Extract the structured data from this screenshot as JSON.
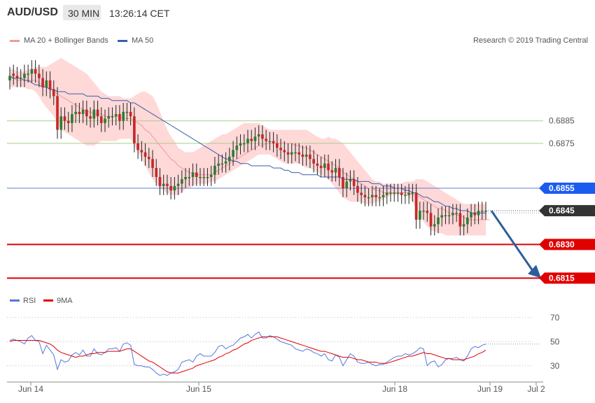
{
  "header": {
    "pair": "AUD/USD",
    "timeframe": "30 MIN",
    "time": "13:26:14 CET"
  },
  "legend": {
    "bollinger_label": "MA 20 + Bollinger Bands",
    "ma50_label": "MA 50",
    "credit": "Research © 2019 Trading Central"
  },
  "rsi_legend": {
    "rsi_label": "RSI",
    "ma_label": "9MA"
  },
  "colors": {
    "bollinger_band": "#ffd8d8",
    "ma20": "#f29a9a",
    "ma50": "#3a5ea8",
    "bull_candle": "#2e7d32",
    "bear_candle": "#c62828",
    "support_resistance_green": "#a6cf86",
    "blue_level": "#5b7fd6",
    "red_level": "#e00000",
    "dark_badge": "#333333",
    "forecast_arrow": "#2d5e9c",
    "rsi_line": "#5577dd",
    "rsi_ma": "#e00000"
  },
  "chart_data": [
    {
      "type": "candlestick",
      "title": "AUD/USD 30 MIN",
      "x_ticks": [
        "Jun 14",
        "Jun 15",
        "Jun 18",
        "Jun 19",
        "Jul 2"
      ],
      "ylim": [
        0.6808,
        0.6912
      ],
      "current_price": 0.6845,
      "levels": [
        {
          "value": 0.6885,
          "label": "0.6885",
          "style": "green-line"
        },
        {
          "value": 0.6875,
          "label": "0.6875",
          "style": "green-line"
        },
        {
          "value": 0.6855,
          "label": "0.6855",
          "style": "blue-badge"
        },
        {
          "value": 0.6845,
          "label": "0.6845",
          "style": "dark-badge"
        },
        {
          "value": 0.683,
          "label": "0.6830",
          "style": "red-badge"
        },
        {
          "value": 0.6815,
          "label": "0.6815",
          "style": "red-badge"
        }
      ],
      "close_series": [
        0.6905,
        0.6905,
        0.6904,
        0.6904,
        0.6906,
        0.6906,
        0.6908,
        0.6906,
        0.6904,
        0.69,
        0.6903,
        0.6899,
        0.6896,
        0.6881,
        0.6887,
        0.6885,
        0.6884,
        0.6888,
        0.6889,
        0.6888,
        0.689,
        0.6887,
        0.6886,
        0.689,
        0.6887,
        0.6884,
        0.6886,
        0.6887,
        0.6887,
        0.6888,
        0.6885,
        0.6889,
        0.6889,
        0.6887,
        0.6875,
        0.6872,
        0.6871,
        0.6869,
        0.6868,
        0.6864,
        0.686,
        0.6856,
        0.6857,
        0.6856,
        0.6854,
        0.6856,
        0.6857,
        0.6859,
        0.686,
        0.686,
        0.6862,
        0.686,
        0.686,
        0.686,
        0.686,
        0.6861,
        0.6865,
        0.6866,
        0.6866,
        0.6867,
        0.6869,
        0.6872,
        0.6874,
        0.6875,
        0.6875,
        0.6877,
        0.6876,
        0.6878,
        0.6879,
        0.6877,
        0.6876,
        0.6876,
        0.6875,
        0.6873,
        0.6872,
        0.6871,
        0.687,
        0.6871,
        0.6871,
        0.687,
        0.6869,
        0.687,
        0.6868,
        0.6866,
        0.6865,
        0.6864,
        0.6866,
        0.6863,
        0.6862,
        0.6864,
        0.686,
        0.6855,
        0.6858,
        0.6859,
        0.6856,
        0.6853,
        0.6852,
        0.6851,
        0.6851,
        0.6852,
        0.6851,
        0.6851,
        0.6852,
        0.6853,
        0.6853,
        0.6853,
        0.6853,
        0.6852,
        0.6852,
        0.6853,
        0.6853,
        0.6841,
        0.6845,
        0.6845,
        0.6844,
        0.6838,
        0.6839,
        0.6842,
        0.6843,
        0.6843,
        0.6843,
        0.6844,
        0.6844,
        0.6838,
        0.6839,
        0.6842,
        0.6844,
        0.6843,
        0.6845,
        0.6845,
        0.6845
      ],
      "open_series": [
        0.6903,
        0.6906,
        0.6905,
        0.6904,
        0.6904,
        0.6906,
        0.6906,
        0.6908,
        0.6906,
        0.6904,
        0.69,
        0.6903,
        0.6899,
        0.6896,
        0.6881,
        0.6887,
        0.6885,
        0.6884,
        0.6888,
        0.6889,
        0.6888,
        0.689,
        0.6887,
        0.6886,
        0.689,
        0.6887,
        0.6884,
        0.6886,
        0.6887,
        0.6887,
        0.6888,
        0.6885,
        0.6889,
        0.6889,
        0.6887,
        0.6875,
        0.6872,
        0.6871,
        0.6869,
        0.6868,
        0.6864,
        0.686,
        0.6856,
        0.6857,
        0.6856,
        0.6854,
        0.6856,
        0.6857,
        0.6859,
        0.686,
        0.686,
        0.6862,
        0.686,
        0.686,
        0.686,
        0.686,
        0.6861,
        0.6865,
        0.6866,
        0.6866,
        0.6867,
        0.6869,
        0.6872,
        0.6874,
        0.6875,
        0.6875,
        0.6877,
        0.6876,
        0.6878,
        0.6879,
        0.6877,
        0.6876,
        0.6876,
        0.6875,
        0.6873,
        0.6872,
        0.6871,
        0.687,
        0.6871,
        0.6871,
        0.687,
        0.6869,
        0.687,
        0.6868,
        0.6866,
        0.6865,
        0.6864,
        0.6866,
        0.6863,
        0.6862,
        0.6864,
        0.686,
        0.6855,
        0.6858,
        0.6859,
        0.6856,
        0.6853,
        0.6852,
        0.6851,
        0.6851,
        0.6852,
        0.6851,
        0.6851,
        0.6852,
        0.6853,
        0.6853,
        0.6853,
        0.6853,
        0.6852,
        0.6852,
        0.6853,
        0.6853,
        0.6841,
        0.6845,
        0.6845,
        0.6844,
        0.6838,
        0.6839,
        0.6842,
        0.6843,
        0.6843,
        0.6843,
        0.6844,
        0.6844,
        0.6838,
        0.6839,
        0.6842,
        0.6844,
        0.6843,
        0.6845,
        0.6845
      ],
      "ma20_series": [
        0.6904,
        0.6904,
        0.6903,
        0.6903,
        0.6903,
        0.6903,
        0.6903,
        0.6903,
        0.6902,
        0.6901,
        0.69,
        0.6899,
        0.6898,
        0.6897,
        0.6896,
        0.6895,
        0.6894,
        0.6893,
        0.6892,
        0.6891,
        0.689,
        0.6889,
        0.6889,
        0.6888,
        0.6888,
        0.6888,
        0.6887,
        0.6887,
        0.6887,
        0.6887,
        0.6887,
        0.6886,
        0.6886,
        0.6886,
        0.6885,
        0.6884,
        0.6883,
        0.6881,
        0.688,
        0.6878,
        0.6876,
        0.6874,
        0.6872,
        0.687,
        0.6868,
        0.6867,
        0.6865,
        0.6864,
        0.6863,
        0.6862,
        0.6862,
        0.6861,
        0.6861,
        0.6861,
        0.6861,
        0.6861,
        0.6862,
        0.6863,
        0.6864,
        0.6865,
        0.6866,
        0.6867,
        0.6868,
        0.6869,
        0.687,
        0.6871,
        0.6872,
        0.6873,
        0.6874,
        0.6874,
        0.6875,
        0.6875,
        0.6875,
        0.6875,
        0.6875,
        0.6875,
        0.6875,
        0.6875,
        0.6874,
        0.6874,
        0.6873,
        0.6873,
        0.6872,
        0.6871,
        0.687,
        0.6869,
        0.6868,
        0.6867,
        0.6866,
        0.6865,
        0.6864,
        0.6862,
        0.6861,
        0.686,
        0.6859,
        0.6858,
        0.6857,
        0.6856,
        0.6855,
        0.6855,
        0.6854,
        0.6854,
        0.6853,
        0.6853,
        0.6853,
        0.6853,
        0.6853,
        0.6853,
        0.6853,
        0.6853,
        0.6852,
        0.6852,
        0.6851,
        0.685,
        0.6849,
        0.6848,
        0.6847,
        0.6846,
        0.6846,
        0.6845,
        0.6844,
        0.6844,
        0.6843,
        0.6843,
        0.6842,
        0.6841,
        0.6841,
        0.6841,
        0.6841,
        0.6841,
        0.6841,
        0.6841
      ],
      "band_upper": [
        0.6908,
        0.6908,
        0.6907,
        0.6907,
        0.6907,
        0.6908,
        0.6908,
        0.6909,
        0.6909,
        0.6909,
        0.6909,
        0.691,
        0.6911,
        0.6912,
        0.6913,
        0.6912,
        0.6911,
        0.691,
        0.6909,
        0.6908,
        0.6907,
        0.6906,
        0.6904,
        0.6902,
        0.69,
        0.6898,
        0.6897,
        0.6896,
        0.6896,
        0.6896,
        0.6896,
        0.6895,
        0.6895,
        0.6895,
        0.6896,
        0.6897,
        0.6898,
        0.6898,
        0.6897,
        0.6896,
        0.6893,
        0.6889,
        0.6885,
        0.6881,
        0.6878,
        0.6876,
        0.6873,
        0.6872,
        0.6871,
        0.6871,
        0.6871,
        0.6872,
        0.6873,
        0.6874,
        0.6875,
        0.6876,
        0.6877,
        0.6878,
        0.6879,
        0.6879,
        0.688,
        0.6881,
        0.6882,
        0.6883,
        0.6884,
        0.6884,
        0.6884,
        0.6884,
        0.6884,
        0.6883,
        0.6882,
        0.6881,
        0.6881,
        0.6881,
        0.6881,
        0.6881,
        0.6881,
        0.6881,
        0.6881,
        0.6881,
        0.6881,
        0.6881,
        0.688,
        0.6879,
        0.6878,
        0.6877,
        0.6877,
        0.6878,
        0.6877,
        0.6877,
        0.6876,
        0.6875,
        0.6873,
        0.6871,
        0.6869,
        0.6867,
        0.6865,
        0.6863,
        0.6861,
        0.6859,
        0.6858,
        0.6858,
        0.6857,
        0.6857,
        0.6857,
        0.6857,
        0.6857,
        0.6857,
        0.6858,
        0.6858,
        0.6858,
        0.6859,
        0.6859,
        0.6859,
        0.6858,
        0.6857,
        0.6856,
        0.6855,
        0.6854,
        0.6853,
        0.6852,
        0.6851,
        0.685,
        0.6849,
        0.6848,
        0.6848,
        0.6848,
        0.6848,
        0.6848,
        0.6848,
        0.6848,
        0.6848
      ],
      "band_lower": [
        0.69,
        0.69,
        0.69,
        0.69,
        0.69,
        0.6899,
        0.6899,
        0.6898,
        0.6896,
        0.6893,
        0.6891,
        0.6889,
        0.6887,
        0.6884,
        0.6881,
        0.688,
        0.6879,
        0.6878,
        0.6877,
        0.6876,
        0.6875,
        0.6874,
        0.6874,
        0.6874,
        0.6875,
        0.6876,
        0.6876,
        0.6876,
        0.6876,
        0.6876,
        0.6877,
        0.6877,
        0.6877,
        0.6877,
        0.6874,
        0.6871,
        0.6868,
        0.6865,
        0.6862,
        0.6859,
        0.6857,
        0.6855,
        0.6854,
        0.6853,
        0.6852,
        0.6852,
        0.6852,
        0.6853,
        0.6855,
        0.6855,
        0.6856,
        0.6857,
        0.6857,
        0.6857,
        0.6857,
        0.6858,
        0.6858,
        0.6859,
        0.686,
        0.6861,
        0.6862,
        0.6863,
        0.6864,
        0.6865,
        0.6866,
        0.6867,
        0.6868,
        0.6869,
        0.687,
        0.687,
        0.687,
        0.687,
        0.6869,
        0.6868,
        0.6867,
        0.6866,
        0.6866,
        0.6866,
        0.6866,
        0.6866,
        0.6865,
        0.6864,
        0.6864,
        0.6863,
        0.6862,
        0.6861,
        0.686,
        0.6859,
        0.6857,
        0.6855,
        0.6853,
        0.6851,
        0.685,
        0.6849,
        0.6849,
        0.6849,
        0.6849,
        0.6848,
        0.6848,
        0.6848,
        0.6849,
        0.6849,
        0.685,
        0.6851,
        0.6852,
        0.6852,
        0.6852,
        0.6852,
        0.6852,
        0.6851,
        0.6849,
        0.6846,
        0.6843,
        0.684,
        0.6838,
        0.6836,
        0.6836,
        0.6835,
        0.6835,
        0.6834,
        0.6834,
        0.6834,
        0.6834,
        0.6834,
        0.6834,
        0.6834,
        0.6834,
        0.6834,
        0.6834,
        0.6834,
        0.6834,
        0.6834
      ],
      "ma50_series": [
        0.6905,
        0.6904,
        0.6904,
        0.6904,
        0.6903,
        0.6903,
        0.6902,
        0.6901,
        0.6901,
        0.69,
        0.69,
        0.6899,
        0.6899,
        0.6898,
        0.6898,
        0.6898,
        0.6897,
        0.6897,
        0.6897,
        0.6897,
        0.6897,
        0.6896,
        0.6896,
        0.6896,
        0.6896,
        0.6895,
        0.6895,
        0.6895,
        0.6894,
        0.6894,
        0.6894,
        0.6894,
        0.6894,
        0.6893,
        0.6893,
        0.6892,
        0.6891,
        0.689,
        0.6889,
        0.6888,
        0.6887,
        0.6886,
        0.6885,
        0.6884,
        0.6883,
        0.6882,
        0.6881,
        0.688,
        0.6879,
        0.6878,
        0.6877,
        0.6876,
        0.6875,
        0.6874,
        0.6873,
        0.6872,
        0.6871,
        0.687,
        0.6869,
        0.6868,
        0.6868,
        0.6867,
        0.6867,
        0.6866,
        0.6866,
        0.6866,
        0.6865,
        0.6865,
        0.6865,
        0.6865,
        0.6865,
        0.6865,
        0.6864,
        0.6864,
        0.6864,
        0.6863,
        0.6863,
        0.6862,
        0.6862,
        0.6862,
        0.6861,
        0.6861,
        0.6861,
        0.6861,
        0.6861,
        0.686,
        0.686,
        0.686,
        0.686,
        0.686,
        0.686,
        0.6859,
        0.6859,
        0.6859,
        0.6859,
        0.6858,
        0.6858,
        0.6858,
        0.6858,
        0.6857,
        0.6857,
        0.6857,
        0.6856,
        0.6856,
        0.6856,
        0.6855,
        0.6855,
        0.6855,
        0.6854,
        0.6854,
        0.6853,
        0.6853,
        0.6852,
        0.6851,
        0.6851,
        0.685,
        0.6849,
        0.6849,
        0.6848,
        0.6847,
        0.6847,
        0.6846,
        0.6846,
        0.6845,
        0.6845,
        0.6845,
        0.6844,
        0.6844,
        0.6844,
        0.6844,
        0.6844
      ]
    },
    {
      "type": "line",
      "title": "RSI",
      "ylim": [
        20,
        78
      ],
      "y_ticks": [
        30,
        50,
        70
      ],
      "series": [
        {
          "name": "RSI",
          "values": [
            51,
            52,
            51,
            50,
            48,
            53,
            55,
            51,
            50,
            40,
            47,
            43,
            39,
            27,
            35,
            33,
            34,
            39,
            41,
            39,
            43,
            38,
            38,
            44,
            40,
            39,
            41,
            44,
            44,
            45,
            42,
            48,
            49,
            47,
            31,
            30,
            30,
            29,
            29,
            27,
            24,
            22,
            23,
            22,
            24,
            25,
            27,
            33,
            34,
            35,
            33,
            38,
            40,
            38,
            38,
            38,
            41,
            46,
            47,
            44,
            46,
            47,
            50,
            53,
            54,
            56,
            53,
            56,
            58,
            53,
            53,
            55,
            54,
            52,
            50,
            49,
            48,
            47,
            44,
            43,
            42,
            44,
            43,
            41,
            40,
            38,
            40,
            35,
            34,
            39,
            37,
            30,
            35,
            40,
            38,
            33,
            32,
            32,
            33,
            31,
            30,
            31,
            31,
            33,
            35,
            37,
            38,
            38,
            40,
            39,
            40,
            42,
            45,
            44,
            30,
            33,
            34,
            29,
            31,
            35,
            36,
            36,
            37,
            35,
            34,
            38,
            44,
            46,
            45,
            47,
            48
          ]
        },
        {
          "name": "9MA",
          "values": [
            50,
            51,
            51,
            51,
            51,
            51,
            51,
            51,
            51,
            50,
            49,
            48,
            46,
            43,
            41,
            40,
            39,
            38,
            37,
            38,
            38,
            39,
            40,
            40,
            41,
            41,
            41,
            42,
            42,
            42,
            42,
            43,
            44,
            44,
            42,
            40,
            38,
            36,
            34,
            33,
            31,
            29,
            27,
            25,
            24,
            24,
            24,
            25,
            26,
            27,
            28,
            30,
            31,
            32,
            33,
            34,
            35,
            37,
            38,
            40,
            41,
            43,
            44,
            46,
            48,
            49,
            51,
            52,
            53,
            54,
            54,
            54,
            54,
            54,
            53,
            52,
            51,
            50,
            49,
            48,
            47,
            46,
            45,
            44,
            43,
            42,
            42,
            41,
            40,
            39,
            38,
            37,
            37,
            37,
            36,
            35,
            35,
            34,
            33,
            33,
            33,
            32,
            32,
            32,
            33,
            34,
            35,
            36,
            37,
            38,
            38,
            39,
            40,
            41,
            40,
            40,
            39,
            38,
            37,
            36,
            36,
            35,
            35,
            35,
            35,
            36,
            37,
            38,
            40,
            41,
            43
          ]
        }
      ]
    }
  ]
}
